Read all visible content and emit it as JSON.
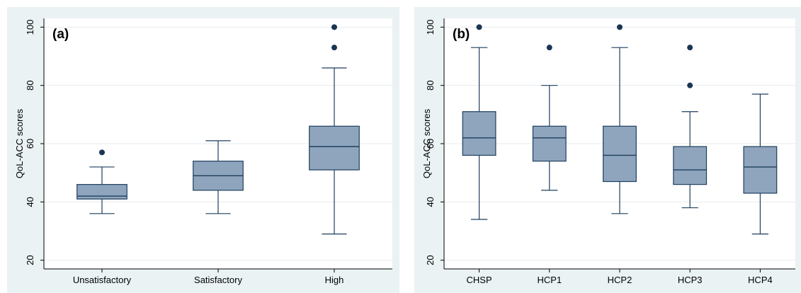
{
  "colors": {
    "box_fill": "#8ea5bd",
    "box_stroke": "#1f3e5d",
    "outlier": "#1a3553",
    "grid": "#ffffff",
    "plot_bg": "#ffffff",
    "panel_bg": "#eaf2f3"
  },
  "chart_data": [
    {
      "type": "box",
      "panel_label": "(a)",
      "ylabel": "QoL-ACC scores",
      "xlabel": "",
      "ylim": [
        17,
        103
      ],
      "yticks": [
        20,
        40,
        60,
        80,
        100
      ],
      "grid": true,
      "categories": [
        "Unsatisfactory",
        "Satisfactory",
        "High"
      ],
      "boxes": [
        {
          "min": 36,
          "q1": 41,
          "median": 42,
          "q3": 46,
          "max": 52,
          "outliers": [
            57
          ]
        },
        {
          "min": 36,
          "q1": 44,
          "median": 49,
          "q3": 54,
          "max": 61,
          "outliers": []
        },
        {
          "min": 29,
          "q1": 51,
          "median": 59,
          "q3": 66,
          "max": 86,
          "outliers": [
            93,
            100
          ]
        }
      ]
    },
    {
      "type": "box",
      "panel_label": "(b)",
      "ylabel": "QoL-ACC scores",
      "xlabel": "",
      "ylim": [
        17,
        103
      ],
      "yticks": [
        20,
        40,
        60,
        80,
        100
      ],
      "grid": true,
      "categories": [
        "CHSP",
        "HCP1",
        "HCP2",
        "HCP3",
        "HCP4"
      ],
      "boxes": [
        {
          "min": 34,
          "q1": 56,
          "median": 62,
          "q3": 71,
          "max": 93,
          "outliers": [
            100
          ]
        },
        {
          "min": 44,
          "q1": 54,
          "median": 62,
          "q3": 66,
          "max": 80,
          "outliers": [
            93
          ]
        },
        {
          "min": 36,
          "q1": 47,
          "median": 56,
          "q3": 66,
          "max": 93,
          "outliers": [
            100
          ]
        },
        {
          "min": 38,
          "q1": 46,
          "median": 51,
          "q3": 59,
          "max": 71,
          "outliers": [
            80,
            93
          ]
        },
        {
          "min": 29,
          "q1": 43,
          "median": 52,
          "q3": 59,
          "max": 77,
          "outliers": []
        }
      ]
    }
  ]
}
